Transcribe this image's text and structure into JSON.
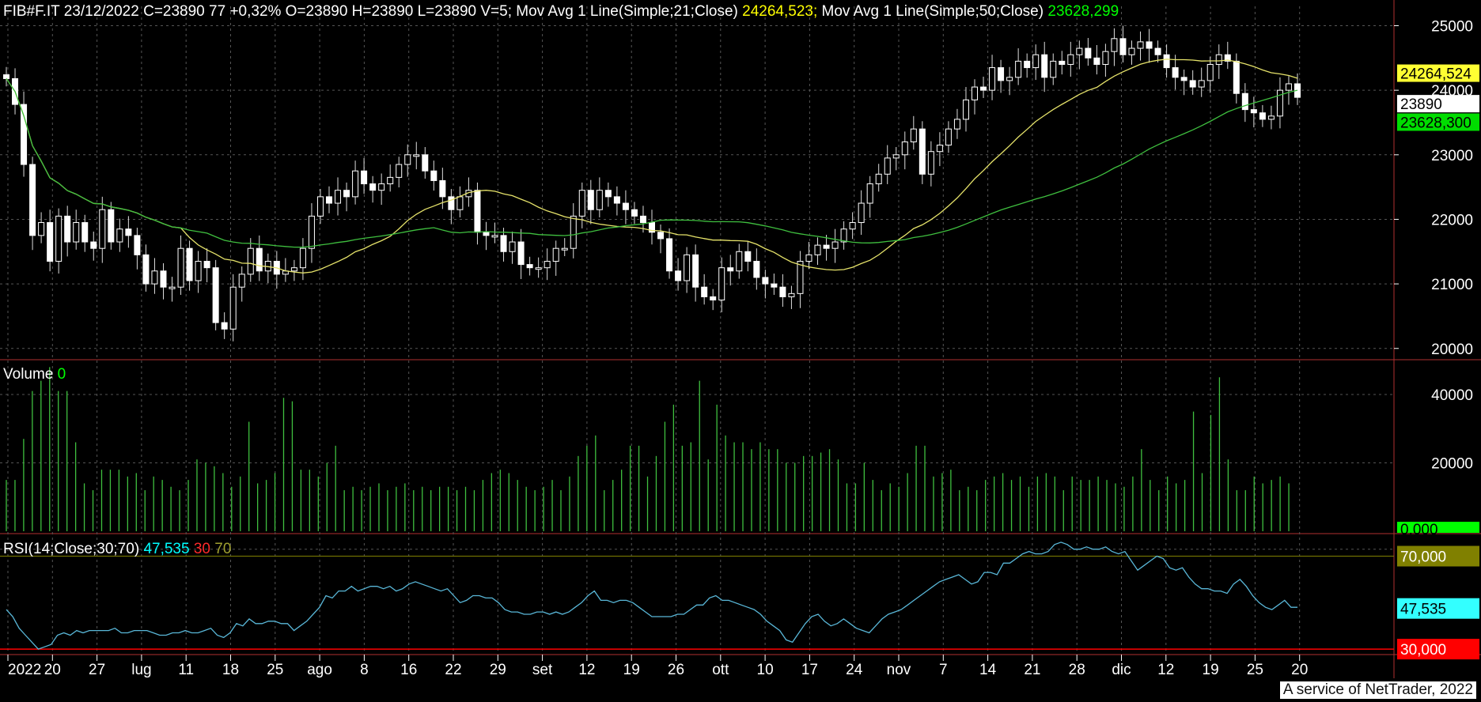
{
  "header": {
    "symbol_line": "FIB#F.IT 23/12/2022 C=23890 77 +0,32% O=23890 H=23890 L=23890 V=5;",
    "ma21_label": "Mov Avg 1 Line(Simple;21;Close)",
    "ma21_value": "24264,523;",
    "ma50_label": "Mov Avg 1 Line(Simple;50;Close)",
    "ma50_value": "23628,299"
  },
  "volume_label": {
    "name": "Volume",
    "value": "0"
  },
  "rsi_label": {
    "name": "RSI(14;Close;30;70)",
    "value": "47,535",
    "low": "30",
    "high": "70"
  },
  "footer": "A service of NetTrader, 2022",
  "badges": {
    "ma21": "24264,524",
    "last": "23890",
    "ma50": "23628,300",
    "vol": "0,000",
    "rsi_high": "70,000",
    "rsi_val": "47,535",
    "rsi_low": "30,000"
  },
  "colors": {
    "background": "#000000",
    "candle_up": "#ffffff",
    "candle_down": "#ffffff",
    "ma21": "#e6e36a",
    "ma50": "#3fbf3f",
    "volume": "#3fbf3f",
    "rsi": "#59b7d8",
    "rsi_low_line": "#ff0000",
    "rsi_high_line": "#808000",
    "grid": "#555555"
  },
  "chart_data": [
    {
      "type": "candlestick",
      "title": "FIB#F.IT",
      "x_ticks": [
        "2022",
        "20",
        "27",
        "lug",
        "11",
        "18",
        "25",
        "ago",
        "8",
        "16",
        "22",
        "29",
        "set",
        "12",
        "19",
        "26",
        "ott",
        "10",
        "17",
        "24",
        "nov",
        "7",
        "14",
        "21",
        "28",
        "dic",
        "12",
        "19",
        "25",
        "20"
      ],
      "y_ticks": [
        20000,
        21000,
        22000,
        23000,
        24000,
        25000
      ],
      "ylim": [
        19850,
        25300
      ],
      "series": [
        {
          "name": "Mov Avg 1 Line(Simple;21;Close)",
          "type": "line"
        },
        {
          "name": "Mov Avg 1 Line(Simple;50;Close)",
          "type": "line"
        }
      ],
      "closes": [
        24180,
        23780,
        22850,
        21750,
        21950,
        21350,
        22050,
        21650,
        21950,
        21650,
        21550,
        22150,
        21650,
        21850,
        21750,
        21450,
        21000,
        21200,
        20950,
        20950,
        21550,
        21050,
        21350,
        21250,
        20400,
        20300,
        20950,
        21150,
        21550,
        21200,
        21350,
        21150,
        21200,
        21250,
        21550,
        22050,
        22350,
        22250,
        22450,
        22350,
        22750,
        22550,
        22450,
        22550,
        22650,
        22850,
        23000,
        23000,
        22750,
        22600,
        22350,
        22150,
        22350,
        22450,
        21800,
        21750,
        21750,
        21500,
        21650,
        21300,
        21250,
        21250,
        21350,
        21550,
        21550,
        22050,
        22450,
        22150,
        22450,
        22350,
        22250,
        22150,
        22050,
        21950,
        21800,
        21700,
        21200,
        21050,
        21450,
        20950,
        20800,
        20750,
        21250,
        21200,
        21500,
        21350,
        21100,
        21000,
        20950,
        20800,
        20850,
        21350,
        21450,
        21600,
        21550,
        21650,
        21850,
        21950,
        22250,
        22550,
        22700,
        22950,
        23000,
        23200,
        23400,
        22700,
        23050,
        23150,
        23400,
        23550,
        23850,
        24050,
        24000,
        24350,
        24150,
        24200,
        24450,
        24350,
        24550,
        24200,
        24450,
        24400,
        24550,
        24650,
        24500,
        24400,
        24600,
        24800,
        24550,
        24650,
        24750,
        24650,
        24550,
        24350,
        24200,
        24150,
        24050,
        24150,
        24400,
        24550,
        24450,
        23950,
        23700,
        23650,
        23550,
        23600,
        24000,
        24100,
        23890
      ],
      "ma21_value": 24264.523,
      "ma50_value": 23628.299
    },
    {
      "type": "bar",
      "title": "Volume",
      "y_ticks": [
        20000,
        40000
      ],
      "ylim": [
        0,
        49000
      ],
      "values": [
        15000,
        15000,
        27000,
        41000,
        44000,
        48000,
        41000,
        41000,
        26000,
        14000,
        12000,
        18000,
        18000,
        18000,
        16000,
        17000,
        12000,
        16000,
        15000,
        13000,
        12000,
        15000,
        21000,
        20000,
        19000,
        17000,
        13000,
        16000,
        32000,
        14000,
        15000,
        17000,
        39000,
        38000,
        18000,
        18000,
        16000,
        20000,
        25000,
        12000,
        13000,
        12000,
        13000,
        14000,
        12000,
        13000,
        14000,
        12000,
        13000,
        12000,
        13000,
        13000,
        12000,
        13000,
        12000,
        15000,
        17000,
        18000,
        17000,
        15000,
        13000,
        12000,
        13000,
        15000,
        12000,
        16000,
        22000,
        25000,
        28000,
        12000,
        15000,
        18000,
        25000,
        25000,
        16000,
        22000,
        32000,
        37000,
        25000,
        26000,
        44000,
        21000,
        37000,
        28000,
        26000,
        26000,
        24000,
        26000,
        24000,
        24000,
        20000,
        20000,
        22000,
        22000,
        23000,
        24000,
        21000,
        14000,
        14000,
        20000,
        15000,
        12000,
        14000,
        13000,
        17000,
        25000,
        25000,
        16000,
        17000,
        18000,
        12000,
        13000,
        12000,
        15000,
        16000,
        17000,
        15000,
        16000,
        13000,
        16000,
        17000,
        16000,
        12000,
        16000,
        15000,
        15000,
        16000,
        15000,
        14000,
        13000,
        16000,
        24000,
        15000,
        12000,
        16000,
        14000,
        15000,
        35000,
        17000,
        34000,
        45000,
        21000,
        12000,
        12000,
        16000,
        14000,
        15000,
        16000,
        14000,
        0
      ],
      "ma21_value": null,
      "ma50_value": null
    },
    {
      "type": "line",
      "title": "RSI(14;Close;30;70)",
      "y_ticks": [
        30,
        70
      ],
      "ylim": [
        28,
        78
      ],
      "values": [
        47,
        44,
        39,
        36,
        33,
        30,
        31,
        32,
        36,
        37,
        36,
        38,
        37,
        38,
        38,
        38,
        38,
        39,
        37,
        37,
        38,
        38,
        38,
        37,
        36,
        36,
        37,
        37,
        38,
        37,
        37,
        38,
        39,
        36,
        35,
        37,
        41,
        40,
        43,
        41,
        41,
        42,
        42,
        41,
        41,
        38,
        40,
        42,
        45,
        48,
        53,
        52,
        55,
        55,
        57,
        55,
        56,
        57,
        57,
        56,
        57,
        55,
        56,
        58,
        59,
        58,
        57,
        56,
        55,
        56,
        53,
        50,
        51,
        53,
        53,
        52,
        52,
        50,
        47,
        46,
        46,
        45,
        45,
        46,
        46,
        45,
        46,
        45,
        46,
        48,
        50,
        53,
        55,
        51,
        51,
        50,
        51,
        51,
        50,
        48,
        46,
        44,
        44,
        44,
        44,
        45,
        45,
        47,
        49,
        49,
        52,
        53,
        51,
        51,
        50,
        49,
        48,
        47,
        45,
        42,
        40,
        38,
        34,
        33,
        37,
        41,
        44,
        45,
        42,
        40,
        41,
        43,
        41,
        39,
        38,
        37,
        40,
        43,
        45,
        46,
        47,
        49,
        51,
        53,
        55,
        57,
        59,
        60,
        61,
        62,
        60,
        58,
        59,
        63,
        63,
        62,
        67,
        67,
        69,
        71,
        72,
        71,
        71,
        72,
        75,
        76,
        75,
        73,
        73,
        74,
        73,
        73,
        74,
        72,
        71,
        72,
        68,
        64,
        66,
        68,
        70,
        69,
        65,
        64,
        65,
        61,
        58,
        56,
        56,
        55,
        55,
        54,
        58,
        60,
        57,
        53,
        50,
        48,
        47,
        49,
        51,
        48,
        48
      ]
    }
  ]
}
